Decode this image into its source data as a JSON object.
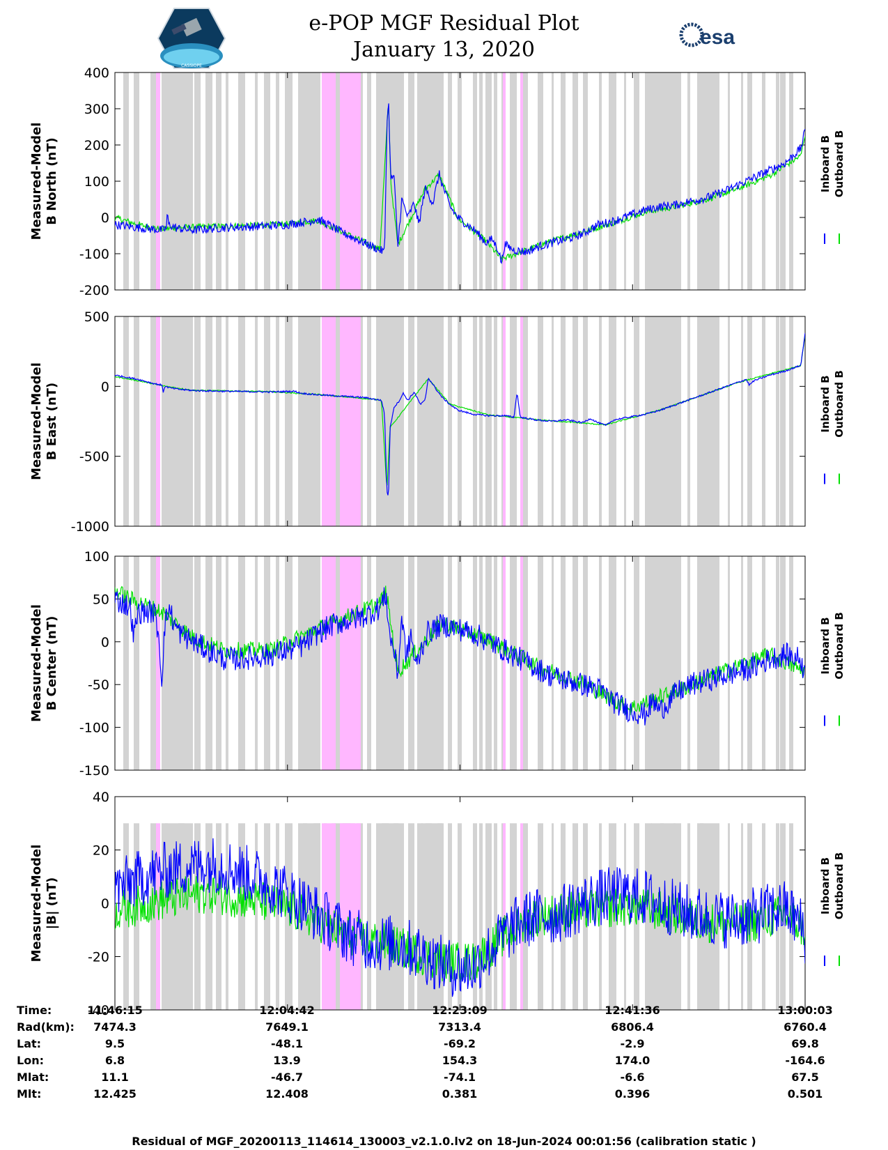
{
  "title": "e-POP MGF Residual Plot",
  "date": "January 13, 2020",
  "logos": {
    "left_icon": "cassiope-satellite-logo",
    "left_text": "CASSIOPE",
    "right_icon": "esa-logo",
    "right_text": "esa"
  },
  "colors": {
    "inboard": "#0000ff",
    "outboard": "#00e000",
    "gray_band": "#d3d3d3",
    "pink_band": "#ffb7ff"
  },
  "legend": {
    "inboard": "Inboard B",
    "outboard": "Outboard B"
  },
  "chart_data": [
    {
      "type": "line",
      "ylabel_line1": "Measured-Model",
      "ylabel_line2": "B North (nT)",
      "ylim": [
        -200,
        400
      ],
      "yticks": [
        400,
        300,
        200,
        100,
        0,
        -100,
        -200
      ],
      "xlim": [
        0,
        4428
      ],
      "inboard": [
        [
          0,
          -20
        ],
        [
          150,
          -28
        ],
        [
          300,
          -35
        ],
        [
          330,
          -30
        ],
        [
          335,
          10
        ],
        [
          345,
          -20
        ],
        [
          400,
          -30
        ],
        [
          500,
          -35
        ],
        [
          700,
          -28
        ],
        [
          900,
          -25
        ],
        [
          1100,
          -20
        ],
        [
          1250,
          -10
        ],
        [
          1300,
          -5
        ],
        [
          1350,
          -15
        ],
        [
          1450,
          -40
        ],
        [
          1550,
          -60
        ],
        [
          1650,
          -80
        ],
        [
          1700,
          -90
        ],
        [
          1730,
          -95
        ],
        [
          1745,
          250
        ],
        [
          1755,
          330
        ],
        [
          1770,
          100
        ],
        [
          1790,
          120
        ],
        [
          1815,
          -80
        ],
        [
          1840,
          50
        ],
        [
          1880,
          0
        ],
        [
          1920,
          40
        ],
        [
          1950,
          -20
        ],
        [
          1990,
          80
        ],
        [
          2040,
          40
        ],
        [
          2080,
          120
        ],
        [
          2100,
          90
        ],
        [
          2150,
          30
        ],
        [
          2200,
          0
        ],
        [
          2260,
          -20
        ],
        [
          2320,
          -40
        ],
        [
          2380,
          -70
        ],
        [
          2420,
          -60
        ],
        [
          2460,
          -90
        ],
        [
          2480,
          -125
        ],
        [
          2500,
          -75
        ],
        [
          2560,
          -90
        ],
        [
          2640,
          -95
        ],
        [
          2720,
          -80
        ],
        [
          2800,
          -70
        ],
        [
          2900,
          -60
        ],
        [
          3000,
          -45
        ],
        [
          3100,
          -20
        ],
        [
          3200,
          -10
        ],
        [
          3300,
          5
        ],
        [
          3400,
          20
        ],
        [
          3500,
          30
        ],
        [
          3600,
          35
        ],
        [
          3700,
          45
        ],
        [
          3800,
          55
        ],
        [
          3900,
          70
        ],
        [
          4000,
          90
        ],
        [
          4100,
          110
        ],
        [
          4200,
          130
        ],
        [
          4300,
          150
        ],
        [
          4400,
          190
        ],
        [
          4428,
          240
        ]
      ],
      "outboard": [
        [
          0,
          0
        ],
        [
          150,
          -20
        ],
        [
          300,
          -32
        ],
        [
          400,
          -28
        ],
        [
          600,
          -25
        ],
        [
          900,
          -22
        ],
        [
          1100,
          -18
        ],
        [
          1300,
          -8
        ],
        [
          1450,
          -38
        ],
        [
          1700,
          -88
        ],
        [
          1745,
          245
        ],
        [
          1755,
          320
        ],
        [
          1770,
          95
        ],
        [
          1815,
          -75
        ],
        [
          1990,
          78
        ],
        [
          2080,
          118
        ],
        [
          2200,
          -2
        ],
        [
          2380,
          -65
        ],
        [
          2480,
          -115
        ],
        [
          2640,
          -90
        ],
        [
          2800,
          -65
        ],
        [
          3000,
          -40
        ],
        [
          3200,
          -15
        ],
        [
          3400,
          15
        ],
        [
          3600,
          30
        ],
        [
          3800,
          50
        ],
        [
          4000,
          80
        ],
        [
          4200,
          115
        ],
        [
          4400,
          170
        ],
        [
          4428,
          230
        ]
      ],
      "noise": 12
    },
    {
      "type": "line",
      "ylabel_line1": "Measured-Model",
      "ylabel_line2": "B East (nT)",
      "ylim": [
        -1000,
        500
      ],
      "yticks": [
        500,
        0,
        -500,
        -1000
      ],
      "xlim": [
        0,
        4428
      ],
      "inboard": [
        [
          0,
          80
        ],
        [
          150,
          50
        ],
        [
          250,
          20
        ],
        [
          300,
          10
        ],
        [
          310,
          -40
        ],
        [
          320,
          0
        ],
        [
          350,
          -10
        ],
        [
          400,
          -20
        ],
        [
          500,
          -30
        ],
        [
          700,
          -35
        ],
        [
          1000,
          -40
        ],
        [
          1150,
          -35
        ],
        [
          1200,
          -50
        ],
        [
          1300,
          -60
        ],
        [
          1450,
          -70
        ],
        [
          1600,
          -80
        ],
        [
          1710,
          -100
        ],
        [
          1730,
          -200
        ],
        [
          1745,
          -750
        ],
        [
          1755,
          -800
        ],
        [
          1765,
          -300
        ],
        [
          1790,
          -150
        ],
        [
          1820,
          -110
        ],
        [
          1850,
          -50
        ],
        [
          1880,
          -100
        ],
        [
          1920,
          -40
        ],
        [
          1960,
          -130
        ],
        [
          1990,
          -100
        ],
        [
          2010,
          60
        ],
        [
          2030,
          30
        ],
        [
          2060,
          -20
        ],
        [
          2100,
          -80
        ],
        [
          2150,
          -130
        ],
        [
          2200,
          -170
        ],
        [
          2300,
          -200
        ],
        [
          2400,
          -210
        ],
        [
          2500,
          -210
        ],
        [
          2560,
          -220
        ],
        [
          2580,
          -40
        ],
        [
          2600,
          -220
        ],
        [
          2700,
          -240
        ],
        [
          2800,
          -250
        ],
        [
          2900,
          -240
        ],
        [
          3000,
          -260
        ],
        [
          3050,
          -230
        ],
        [
          3100,
          -260
        ],
        [
          3150,
          -280
        ],
        [
          3200,
          -240
        ],
        [
          3300,
          -220
        ],
        [
          3400,
          -200
        ],
        [
          3500,
          -170
        ],
        [
          3600,
          -130
        ],
        [
          3700,
          -90
        ],
        [
          3800,
          -50
        ],
        [
          3900,
          -10
        ],
        [
          4000,
          30
        ],
        [
          4050,
          50
        ],
        [
          4070,
          10
        ],
        [
          4100,
          40
        ],
        [
          4200,
          80
        ],
        [
          4300,
          110
        ],
        [
          4400,
          150
        ],
        [
          4428,
          380
        ]
      ],
      "outboard": [
        [
          0,
          70
        ],
        [
          150,
          40
        ],
        [
          300,
          5
        ],
        [
          500,
          -28
        ],
        [
          1000,
          -38
        ],
        [
          1300,
          -58
        ],
        [
          1710,
          -98
        ],
        [
          1745,
          -740
        ],
        [
          1765,
          -295
        ],
        [
          2010,
          55
        ],
        [
          2150,
          -128
        ],
        [
          2400,
          -205
        ],
        [
          2700,
          -238
        ],
        [
          3150,
          -275
        ],
        [
          3500,
          -168
        ],
        [
          4000,
          28
        ],
        [
          4400,
          148
        ],
        [
          4428,
          370
        ]
      ],
      "noise": 6
    },
    {
      "type": "line",
      "ylabel_line1": "Measured-Model",
      "ylabel_line2": "B Center (nT)",
      "ylim": [
        -150,
        100
      ],
      "yticks": [
        100,
        50,
        0,
        -50,
        -100,
        -150
      ],
      "xlim": [
        0,
        4428
      ],
      "inboard": [
        [
          0,
          50
        ],
        [
          50,
          45
        ],
        [
          100,
          40
        ],
        [
          120,
          5
        ],
        [
          150,
          35
        ],
        [
          250,
          35
        ],
        [
          280,
          10
        ],
        [
          300,
          -45
        ],
        [
          320,
          20
        ],
        [
          350,
          40
        ],
        [
          380,
          20
        ],
        [
          420,
          10
        ],
        [
          500,
          0
        ],
        [
          600,
          -10
        ],
        [
          700,
          -20
        ],
        [
          800,
          -20
        ],
        [
          900,
          -18
        ],
        [
          1000,
          -15
        ],
        [
          1100,
          -10
        ],
        [
          1200,
          -5
        ],
        [
          1300,
          10
        ],
        [
          1400,
          20
        ],
        [
          1500,
          25
        ],
        [
          1600,
          30
        ],
        [
          1700,
          40
        ],
        [
          1740,
          55
        ],
        [
          1760,
          10
        ],
        [
          1790,
          -10
        ],
        [
          1815,
          -40
        ],
        [
          1840,
          30
        ],
        [
          1870,
          -20
        ],
        [
          1900,
          10
        ],
        [
          1930,
          -30
        ],
        [
          2000,
          10
        ],
        [
          2100,
          20
        ],
        [
          2200,
          15
        ],
        [
          2300,
          10
        ],
        [
          2400,
          0
        ],
        [
          2500,
          -10
        ],
        [
          2600,
          -20
        ],
        [
          2700,
          -30
        ],
        [
          2800,
          -40
        ],
        [
          2900,
          -45
        ],
        [
          3000,
          -50
        ],
        [
          3100,
          -55
        ],
        [
          3200,
          -70
        ],
        [
          3300,
          -80
        ],
        [
          3400,
          -85
        ],
        [
          3450,
          -70
        ],
        [
          3500,
          -80
        ],
        [
          3550,
          -70
        ],
        [
          3600,
          -60
        ],
        [
          3700,
          -50
        ],
        [
          3800,
          -45
        ],
        [
          3900,
          -40
        ],
        [
          4000,
          -35
        ],
        [
          4100,
          -30
        ],
        [
          4200,
          -20
        ],
        [
          4300,
          -15
        ],
        [
          4400,
          -20
        ],
        [
          4428,
          -40
        ]
      ],
      "outboard": [
        [
          0,
          60
        ],
        [
          100,
          50
        ],
        [
          300,
          35
        ],
        [
          500,
          5
        ],
        [
          700,
          -10
        ],
        [
          1000,
          -10
        ],
        [
          1300,
          15
        ],
        [
          1700,
          45
        ],
        [
          1740,
          58
        ],
        [
          1815,
          -35
        ],
        [
          2100,
          22
        ],
        [
          2400,
          2
        ],
        [
          2700,
          -28
        ],
        [
          3000,
          -48
        ],
        [
          3300,
          -78
        ],
        [
          3600,
          -58
        ],
        [
          3900,
          -35
        ],
        [
          4200,
          -15
        ],
        [
          4428,
          -35
        ]
      ],
      "noise": 14
    },
    {
      "type": "line",
      "ylabel_line1": "Measured-Model",
      "ylabel_line2": "|B| (nT)",
      "ylim": [
        -40,
        40
      ],
      "yticks": [
        40,
        20,
        0,
        -20,
        -40
      ],
      "xlim": [
        0,
        4428
      ],
      "inboard": [
        [
          0,
          5
        ],
        [
          100,
          8
        ],
        [
          200,
          10
        ],
        [
          300,
          12
        ],
        [
          400,
          13
        ],
        [
          500,
          14
        ],
        [
          600,
          15
        ],
        [
          700,
          14
        ],
        [
          800,
          12
        ],
        [
          900,
          10
        ],
        [
          1000,
          7
        ],
        [
          1100,
          4
        ],
        [
          1200,
          0
        ],
        [
          1300,
          -4
        ],
        [
          1400,
          -8
        ],
        [
          1500,
          -12
        ],
        [
          1600,
          -14
        ],
        [
          1700,
          -15
        ],
        [
          1800,
          -15
        ],
        [
          1900,
          -17
        ],
        [
          2000,
          -20
        ],
        [
          2100,
          -23
        ],
        [
          2200,
          -25
        ],
        [
          2300,
          -24
        ],
        [
          2400,
          -18
        ],
        [
          2500,
          -12
        ],
        [
          2600,
          -7
        ],
        [
          2700,
          -5
        ],
        [
          2800,
          -5
        ],
        [
          2900,
          -3
        ],
        [
          3000,
          0
        ],
        [
          3100,
          2
        ],
        [
          3200,
          3
        ],
        [
          3300,
          3
        ],
        [
          3400,
          2
        ],
        [
          3500,
          0
        ],
        [
          3600,
          -2
        ],
        [
          3700,
          -4
        ],
        [
          3800,
          -5
        ],
        [
          3900,
          -6
        ],
        [
          4000,
          -6
        ],
        [
          4100,
          -5
        ],
        [
          4200,
          -3
        ],
        [
          4300,
          -2
        ],
        [
          4400,
          -8
        ],
        [
          4428,
          -12
        ]
      ],
      "outboard": [
        [
          0,
          -3
        ],
        [
          200,
          0
        ],
        [
          400,
          2
        ],
        [
          600,
          4
        ],
        [
          800,
          2
        ],
        [
          1000,
          0
        ],
        [
          1200,
          -4
        ],
        [
          1500,
          -12
        ],
        [
          1800,
          -16
        ],
        [
          2100,
          -22
        ],
        [
          2300,
          -22
        ],
        [
          2500,
          -12
        ],
        [
          2700,
          -5
        ],
        [
          2900,
          -3
        ],
        [
          3100,
          -2
        ],
        [
          3300,
          -1
        ],
        [
          3500,
          -3
        ],
        [
          3700,
          -6
        ],
        [
          3900,
          -8
        ],
        [
          4100,
          -7
        ],
        [
          4300,
          -4
        ],
        [
          4428,
          -10
        ]
      ],
      "noise": 11
    }
  ],
  "x_axis_rows": {
    "labels": [
      "Time:",
      "Rad(km):",
      "Lat:",
      "Lon:",
      "Mlat:",
      "Mlt:"
    ],
    "columns": [
      [
        "11:46:15",
        "7474.3",
        "9.5",
        "6.8",
        "11.1",
        "12.425"
      ],
      [
        "12:04:42",
        "7649.1",
        "-48.1",
        "13.9",
        "-46.7",
        "12.408"
      ],
      [
        "12:23:09",
        "7313.4",
        "-69.2",
        "154.3",
        "-74.1",
        "0.381"
      ],
      [
        "12:41:36",
        "6806.4",
        "-2.9",
        "174.0",
        "-6.6",
        "0.396"
      ],
      [
        "13:00:03",
        "6760.4",
        "69.8",
        "-164.6",
        "67.5",
        "0.501"
      ]
    ]
  },
  "footer": "Residual of MGF_20200113_114614_130003_v2.1.0.lv2 on 18-Jun-2024 00:01:56 (calibration static )"
}
